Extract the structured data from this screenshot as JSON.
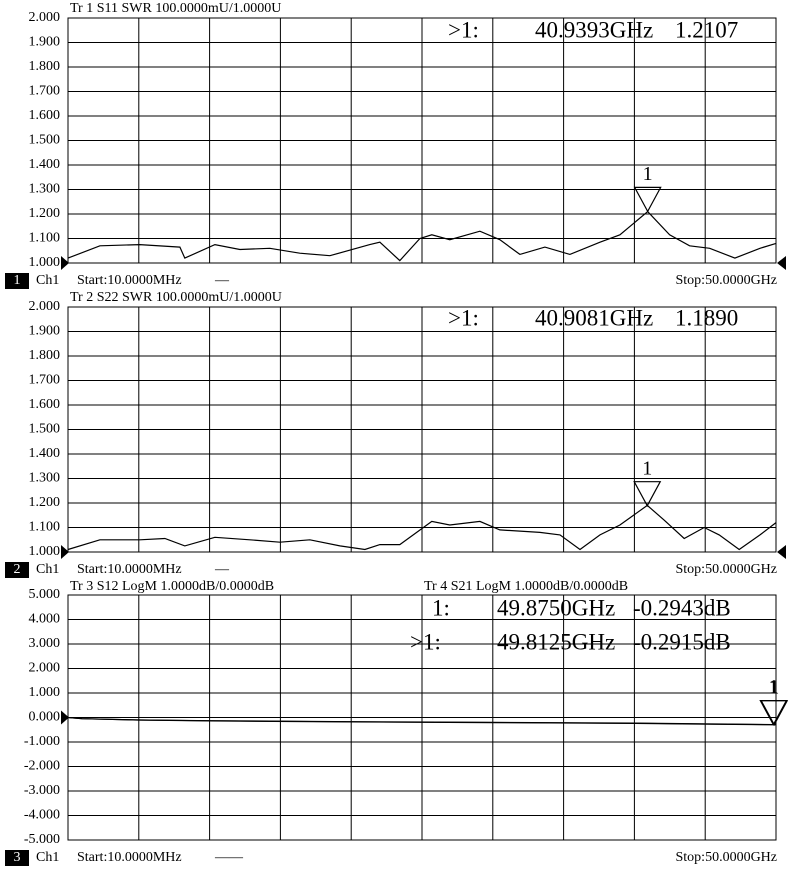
{
  "chart_data": [
    {
      "type": "line",
      "title": "Tr 1  S11 SWR 100.0000mU/1.0000U",
      "channel": "1",
      "channel_name": "Ch1",
      "start": "Start:10.0000MHz",
      "start_suffix": "—",
      "stop": "Stop:50.0000GHz",
      "xlim": [
        0.01,
        50
      ],
      "ylim": [
        1,
        2
      ],
      "grid": true,
      "yticks": [
        {
          "value": 1,
          "label": "1.000"
        },
        {
          "value": 1.1,
          "label": "1.100"
        },
        {
          "value": 1.2,
          "label": "1.200"
        },
        {
          "value": 1.3,
          "label": "1.300"
        },
        {
          "value": 1.4,
          "label": "1.400"
        },
        {
          "value": 1.5,
          "label": "1.500"
        },
        {
          "value": 1.6,
          "label": "1.600"
        },
        {
          "value": 1.7,
          "label": "1.700"
        },
        {
          "value": 1.8,
          "label": "1.800"
        },
        {
          "value": 1.9,
          "label": "1.900"
        },
        {
          "value": 2,
          "label": "2.000"
        }
      ],
      "x": [
        0.01,
        2.26,
        5.08,
        7.91,
        8.26,
        10.38,
        12.15,
        14.26,
        16.38,
        18.5,
        21.32,
        22.03,
        23.44,
        24.86,
        25.7,
        26.97,
        29.09,
        30.5,
        31.92,
        33.68,
        35.45,
        37.57,
        38.98,
        40.94,
        42.49,
        43.9,
        45.32,
        47.1,
        48.87,
        50
      ],
      "series": [
        {
          "color": "#000000",
          "values": [
            1.02,
            1.07,
            1.075,
            1.065,
            1.02,
            1.075,
            1.055,
            1.06,
            1.04,
            1.03,
            1.075,
            1.085,
            1.01,
            1.1,
            1.115,
            1.095,
            1.13,
            1.095,
            1.035,
            1.065,
            1.035,
            1.085,
            1.115,
            1.21,
            1.115,
            1.07,
            1.06,
            1.02,
            1.06,
            1.08
          ]
        }
      ],
      "markers": [
        {
          "prefix": ">1:",
          "label": "1",
          "x": 40.9393,
          "x_label": "40.9393GHz",
          "y": 1.2107,
          "y_label": "1.2107"
        }
      ]
    },
    {
      "type": "line",
      "title": "Tr 2  S22 SWR 100.0000mU/1.0000U",
      "channel": "2",
      "channel_name": "Ch1",
      "start": "Start:10.0000MHz",
      "start_suffix": "—",
      "stop": "Stop:50.0000GHz",
      "xlim": [
        0.01,
        50
      ],
      "ylim": [
        1,
        2
      ],
      "grid": true,
      "yticks": [
        {
          "value": 1,
          "label": "1.000"
        },
        {
          "value": 1.1,
          "label": "1.100"
        },
        {
          "value": 1.2,
          "label": "1.200"
        },
        {
          "value": 1.3,
          "label": "1.300"
        },
        {
          "value": 1.4,
          "label": "1.400"
        },
        {
          "value": 1.5,
          "label": "1.500"
        },
        {
          "value": 1.6,
          "label": "1.600"
        },
        {
          "value": 1.7,
          "label": "1.700"
        },
        {
          "value": 1.8,
          "label": "1.800"
        },
        {
          "value": 1.9,
          "label": "1.900"
        },
        {
          "value": 2,
          "label": "2.000"
        }
      ],
      "x": [
        0.01,
        2.26,
        5.08,
        6.85,
        8.26,
        10.38,
        12.85,
        14.97,
        17.09,
        19.21,
        20.97,
        22.03,
        23.44,
        25.7,
        26.97,
        29.09,
        30.5,
        33.33,
        34.75,
        36.16,
        37.57,
        38.98,
        40.91,
        42.1,
        43.52,
        44.93,
        45.99,
        47.4,
        48.87,
        50
      ],
      "series": [
        {
          "color": "#000000",
          "values": [
            1.01,
            1.05,
            1.05,
            1.055,
            1.025,
            1.06,
            1.05,
            1.04,
            1.05,
            1.025,
            1.01,
            1.03,
            1.03,
            1.125,
            1.11,
            1.125,
            1.09,
            1.08,
            1.07,
            1.01,
            1.07,
            1.11,
            1.19,
            1.13,
            1.055,
            1.1,
            1.07,
            1.01,
            1.07,
            1.12
          ]
        }
      ],
      "markers": [
        {
          "prefix": ">1:",
          "label": "1",
          "x": 40.9081,
          "x_label": "40.9081GHz",
          "y": 1.189,
          "y_label": "1.1890"
        }
      ]
    },
    {
      "type": "line",
      "title": "Tr 3  S12 LogM 1.0000dB/0.0000dB",
      "title2": "Tr 4  S21 LogM 1.0000dB/0.0000dB",
      "channel": "3",
      "channel_name": "Ch1",
      "start": "Start:10.0000MHz",
      "start_suffix": "——",
      "stop": "Stop:50.0000GHz",
      "xlim": [
        0.01,
        50
      ],
      "ylim": [
        -5,
        5
      ],
      "grid": true,
      "yticks": [
        {
          "value": -5,
          "label": "-5.000"
        },
        {
          "value": -4,
          "label": "-4.000"
        },
        {
          "value": -3,
          "label": "-3.000"
        },
        {
          "value": -2,
          "label": "-2.000"
        },
        {
          "value": -1,
          "label": "-1.000"
        },
        {
          "value": 0,
          "label": "0.000"
        },
        {
          "value": 1,
          "label": "1.000"
        },
        {
          "value": 2,
          "label": "2.000"
        },
        {
          "value": 3,
          "label": "3.000"
        },
        {
          "value": 4,
          "label": "4.000"
        },
        {
          "value": 5,
          "label": "5.000"
        }
      ],
      "x": [
        0.01,
        1,
        5,
        10,
        20,
        30,
        40,
        45,
        49.8125,
        50
      ],
      "series": [
        {
          "color": "#000000",
          "values": [
            0,
            -0.05,
            -0.1,
            -0.14,
            -0.18,
            -0.21,
            -0.24,
            -0.27,
            -0.294,
            -0.295
          ]
        },
        {
          "color": "#000000",
          "values": [
            0,
            -0.05,
            -0.1,
            -0.13,
            -0.17,
            -0.2,
            -0.23,
            -0.26,
            -0.2915,
            -0.292
          ]
        }
      ],
      "markers": [
        {
          "prefix": "1:",
          "label": "1",
          "x": 49.875,
          "x_label": "49.8750GHz",
          "y": -0.2943,
          "y_label": "-0.2943dB"
        },
        {
          "prefix": ">1:",
          "label": "1",
          "x": 49.8125,
          "x_label": "49.8125GHz",
          "y": -0.2915,
          "y_label": "-0.2915dB"
        }
      ]
    }
  ]
}
